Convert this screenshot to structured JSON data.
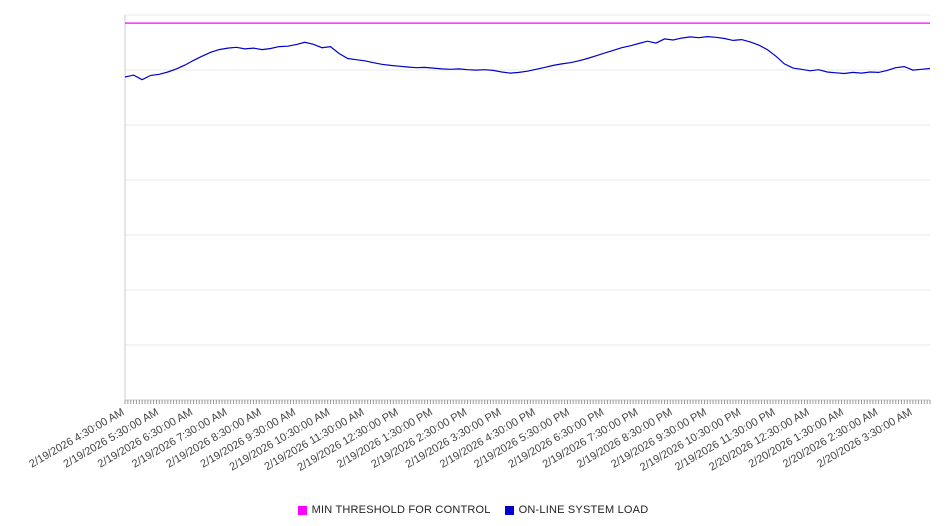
{
  "chart_data": {
    "type": "line",
    "title": "",
    "xlabel": "",
    "ylabel": "",
    "ylim": [
      0,
      100
    ],
    "grid": true,
    "legend_position": "bottom",
    "x_start": "2/19/2026 4:30:00 AM",
    "x_point_interval_minutes": 15,
    "x_tick_interval_minutes": 60,
    "minor_tick_interval_minutes": 5,
    "x_tick_labels": [
      "2/19/2026 4:30:00 AM",
      "2/19/2026 5:30:00 AM",
      "2/19/2026 6:30:00 AM",
      "2/19/2026 7:30:00 AM",
      "2/19/2026 8:30:00 AM",
      "2/19/2026 9:30:00 AM",
      "2/19/2026 10:30:00 AM",
      "2/19/2026 11:30:00 AM",
      "2/19/2026 12:30:00 PM",
      "2/19/2026 1:30:00 PM",
      "2/19/2026 2:30:00 PM",
      "2/19/2026 3:30:00 PM",
      "2/19/2026 4:30:00 PM",
      "2/19/2026 5:30:00 PM",
      "2/19/2026 6:30:00 PM",
      "2/19/2026 7:30:00 PM",
      "2/19/2026 8:30:00 PM",
      "2/19/2026 9:30:00 PM",
      "2/19/2026 10:30:00 PM",
      "2/19/2026 11:30:00 PM",
      "2/20/2026 12:30:00 AM",
      "2/20/2026 1:30:00 AM",
      "2/20/2026 2:30:00 AM",
      "2/20/2026 3:30:00 AM"
    ],
    "colors": {
      "grid": "#e8e8e8",
      "axis": "#cccccc",
      "tick": "#999999",
      "label": "#444444",
      "background": "#ffffff"
    },
    "series": [
      {
        "name": "MIN THRESHOLD FOR CONTROL",
        "color": "#ff00ff",
        "values": [
          97.9,
          97.9
        ]
      },
      {
        "name": "ON-LINE SYSTEM LOAD",
        "color": "#0000cd",
        "values": [
          83.9,
          84.4,
          83.2,
          84.3,
          84.6,
          85.2,
          86.0,
          87.0,
          88.2,
          89.3,
          90.3,
          91.0,
          91.4,
          91.6,
          91.2,
          91.4,
          91.0,
          91.3,
          91.8,
          91.9,
          92.3,
          92.9,
          92.4,
          91.5,
          91.8,
          90.0,
          88.7,
          88.4,
          88.1,
          87.6,
          87.2,
          86.9,
          86.7,
          86.5,
          86.3,
          86.4,
          86.2,
          86.0,
          85.9,
          86.0,
          85.8,
          85.7,
          85.8,
          85.6,
          85.2,
          84.9,
          85.1,
          85.4,
          85.9,
          86.4,
          86.9,
          87.3,
          87.6,
          88.1,
          88.7,
          89.4,
          90.1,
          90.8,
          91.5,
          92.0,
          92.6,
          93.2,
          92.7,
          93.8,
          93.5,
          94.0,
          94.3,
          94.1,
          94.4,
          94.2,
          93.9,
          93.4,
          93.6,
          93.0,
          92.2,
          91.0,
          89.3,
          87.3,
          86.2,
          85.9,
          85.5,
          85.8,
          85.2,
          85.0,
          84.8,
          85.1,
          84.9,
          85.2,
          85.1,
          85.6,
          86.3,
          86.6,
          85.7,
          85.9,
          86.1
        ]
      }
    ]
  },
  "legend": {
    "items": [
      {
        "label": "MIN THRESHOLD FOR CONTROL",
        "color": "#ff00ff"
      },
      {
        "label": "ON-LINE SYSTEM LOAD",
        "color": "#0000cd"
      }
    ]
  }
}
